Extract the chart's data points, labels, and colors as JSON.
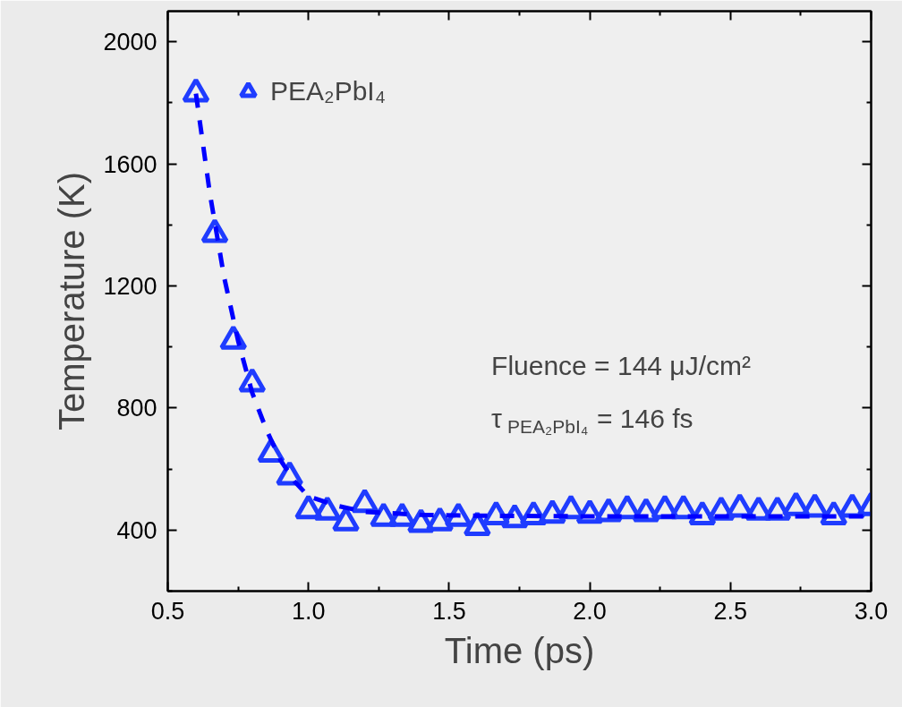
{
  "chart_data": {
    "type": "scatter",
    "xlabel": "Time (ps)",
    "ylabel": "Temperature (K)",
    "xlim": [
      0.5,
      3.0
    ],
    "ylim": [
      200,
      2100
    ],
    "xticks": [
      0.5,
      {
        "value": 1,
        "label": "1.0"
      },
      1.5,
      {
        "value": 2,
        "label": "2.0"
      },
      2.5,
      {
        "value": 3,
        "label": "3.0"
      }
    ],
    "yticks": [
      400,
      800,
      1200,
      1600,
      2000
    ],
    "grid": false,
    "legend": "top left",
    "series": [
      {
        "name": "PEA₂PbI₄",
        "color": "#1f3cff",
        "marker": "triangle",
        "x": [
          0.6,
          0.667,
          0.733,
          0.8,
          0.867,
          0.933,
          1.0,
          1.067,
          1.133,
          1.2,
          1.267,
          1.333,
          1.4,
          1.467,
          1.533,
          1.6,
          1.667,
          1.733,
          1.8,
          1.867,
          1.933,
          2.0,
          2.067,
          2.133,
          2.2,
          2.267,
          2.333,
          2.4,
          2.467,
          2.533,
          2.6,
          2.667,
          2.733,
          2.8,
          2.867,
          2.933,
          3.0
        ],
        "values": [
          1830,
          1370,
          1020,
          880,
          650,
          575,
          465,
          460,
          425,
          485,
          440,
          440,
          420,
          425,
          440,
          410,
          445,
          435,
          445,
          450,
          465,
          450,
          455,
          465,
          455,
          465,
          465,
          445,
          460,
          470,
          460,
          460,
          475,
          470,
          445,
          470,
          475
        ]
      },
      {
        "color": "#0000ff",
        "type": "line",
        "line_style": "dashed",
        "x": [
          0.6,
          0.65,
          0.7,
          0.75,
          0.8,
          0.85,
          0.9,
          0.95,
          1.0,
          1.1,
          1.2,
          1.4,
          1.6,
          2.0,
          3.0
        ],
        "values": [
          1830,
          1500,
          1230,
          1020,
          850,
          730,
          630,
          560,
          510,
          480,
          460,
          450,
          447,
          445,
          445
        ]
      }
    ],
    "annotations": [
      "Fluence = 144 μJ/cm²",
      "τ$_{PEA₂PbI₄}$ = 146 fs"
    ]
  }
}
